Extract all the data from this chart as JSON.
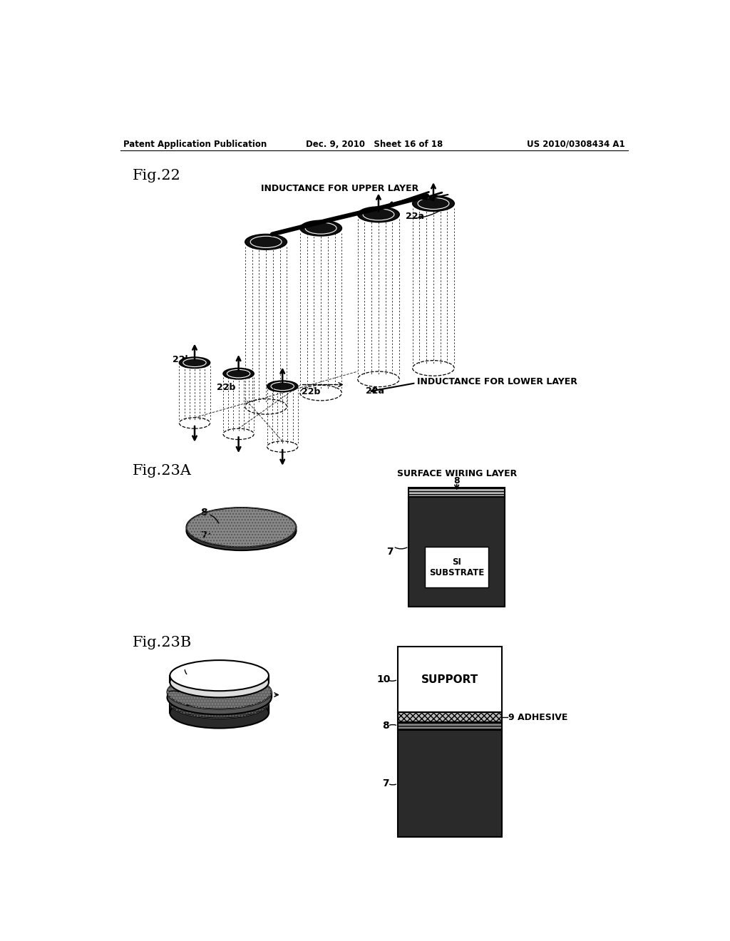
{
  "header_left": "Patent Application Publication",
  "header_mid": "Dec. 9, 2010   Sheet 16 of 18",
  "header_right": "US 2010/0308434 A1",
  "fig22_label": "Fig.22",
  "fig23a_label": "Fig.23A",
  "fig23b_label": "Fig.23B",
  "label_upper": "INDUCTANCE FOR UPPER LAYER",
  "label_lower": "INDUCTANCE FOR LOWER LAYER",
  "label_surface": "SURFACE WIRING LAYER",
  "label_support": "SUPPORT",
  "label_adhesive": "9 ADHESIVE",
  "label_si": "SI\nSUBSTRATE",
  "bg_color": "#ffffff",
  "fg_color": "#000000"
}
